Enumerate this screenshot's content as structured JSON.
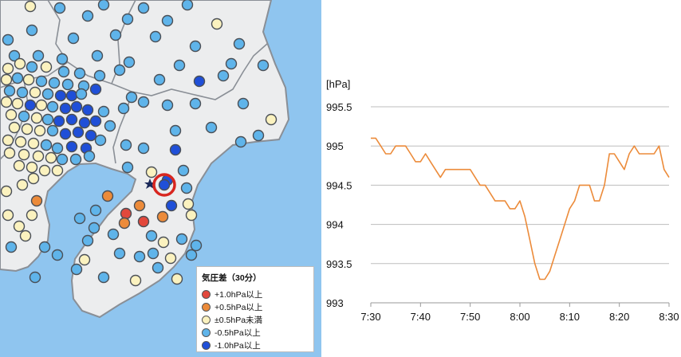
{
  "map": {
    "legend": {
      "title": "気圧差（30分）",
      "items": [
        {
          "label": "+1.0hPa以上",
          "color": "#e2483c"
        },
        {
          "label": "+0.5hPa以上",
          "color": "#ec8b3a"
        },
        {
          "label": "±0.5hPa未満",
          "color": "#fbf2bf"
        },
        {
          "label": "-0.5hPa以上",
          "color": "#5fb4ea"
        },
        {
          "label": "-1.0hPa以上",
          "color": "#1f4fd8"
        }
      ]
    },
    "colors": {
      "sea": "#8fc5ef",
      "land": "#ecedee",
      "border": "#8a8f96",
      "highlight": "#d8261f",
      "star": "#1b2a5a"
    }
  },
  "chart_data": {
    "type": "line",
    "ylabel": "[hPa]",
    "ylim": [
      993,
      995.5
    ],
    "yticks": [
      "995.5",
      "995",
      "994.5",
      "994",
      "993.5",
      "993"
    ],
    "xticks": [
      "7:30",
      "7:40",
      "7:50",
      "8:00",
      "8:10",
      "8:20",
      "8:30"
    ],
    "grid": true,
    "series": [
      {
        "color": "#ec8b3a",
        "x": [
          "7:30",
          "7:31",
          "7:32",
          "7:33",
          "7:34",
          "7:35",
          "7:36",
          "7:37",
          "7:38",
          "7:39",
          "7:40",
          "7:41",
          "7:42",
          "7:43",
          "7:44",
          "7:45",
          "7:46",
          "7:47",
          "7:48",
          "7:49",
          "7:50",
          "7:51",
          "7:52",
          "7:53",
          "7:54",
          "7:55",
          "7:56",
          "7:57",
          "7:58",
          "7:59",
          "8:00",
          "8:01",
          "8:02",
          "8:03",
          "8:04",
          "8:05",
          "8:06",
          "8:07",
          "8:08",
          "8:09",
          "8:10",
          "8:11",
          "8:12",
          "8:13",
          "8:14",
          "8:15",
          "8:16",
          "8:17",
          "8:18",
          "8:19",
          "8:20",
          "8:21",
          "8:22",
          "8:23",
          "8:24",
          "8:25",
          "8:26",
          "8:27",
          "8:28",
          "8:29",
          "8:30"
        ],
        "values": [
          995.1,
          995.1,
          995.0,
          994.9,
          994.9,
          995.0,
          995.0,
          995.0,
          994.9,
          994.8,
          994.8,
          994.9,
          994.8,
          994.7,
          994.6,
          994.7,
          994.7,
          994.7,
          994.7,
          994.7,
          994.7,
          994.6,
          994.5,
          994.5,
          994.4,
          994.3,
          994.3,
          994.3,
          994.2,
          994.2,
          994.3,
          994.1,
          993.8,
          993.5,
          993.3,
          993.3,
          993.4,
          993.6,
          993.8,
          994.0,
          994.2,
          994.3,
          994.5,
          994.5,
          994.5,
          994.3,
          994.3,
          994.5,
          994.9,
          994.9,
          994.8,
          994.7,
          994.9,
          995.0,
          994.9,
          994.9,
          994.9,
          994.9,
          995.0,
          994.7,
          994.6
        ]
      }
    ]
  }
}
